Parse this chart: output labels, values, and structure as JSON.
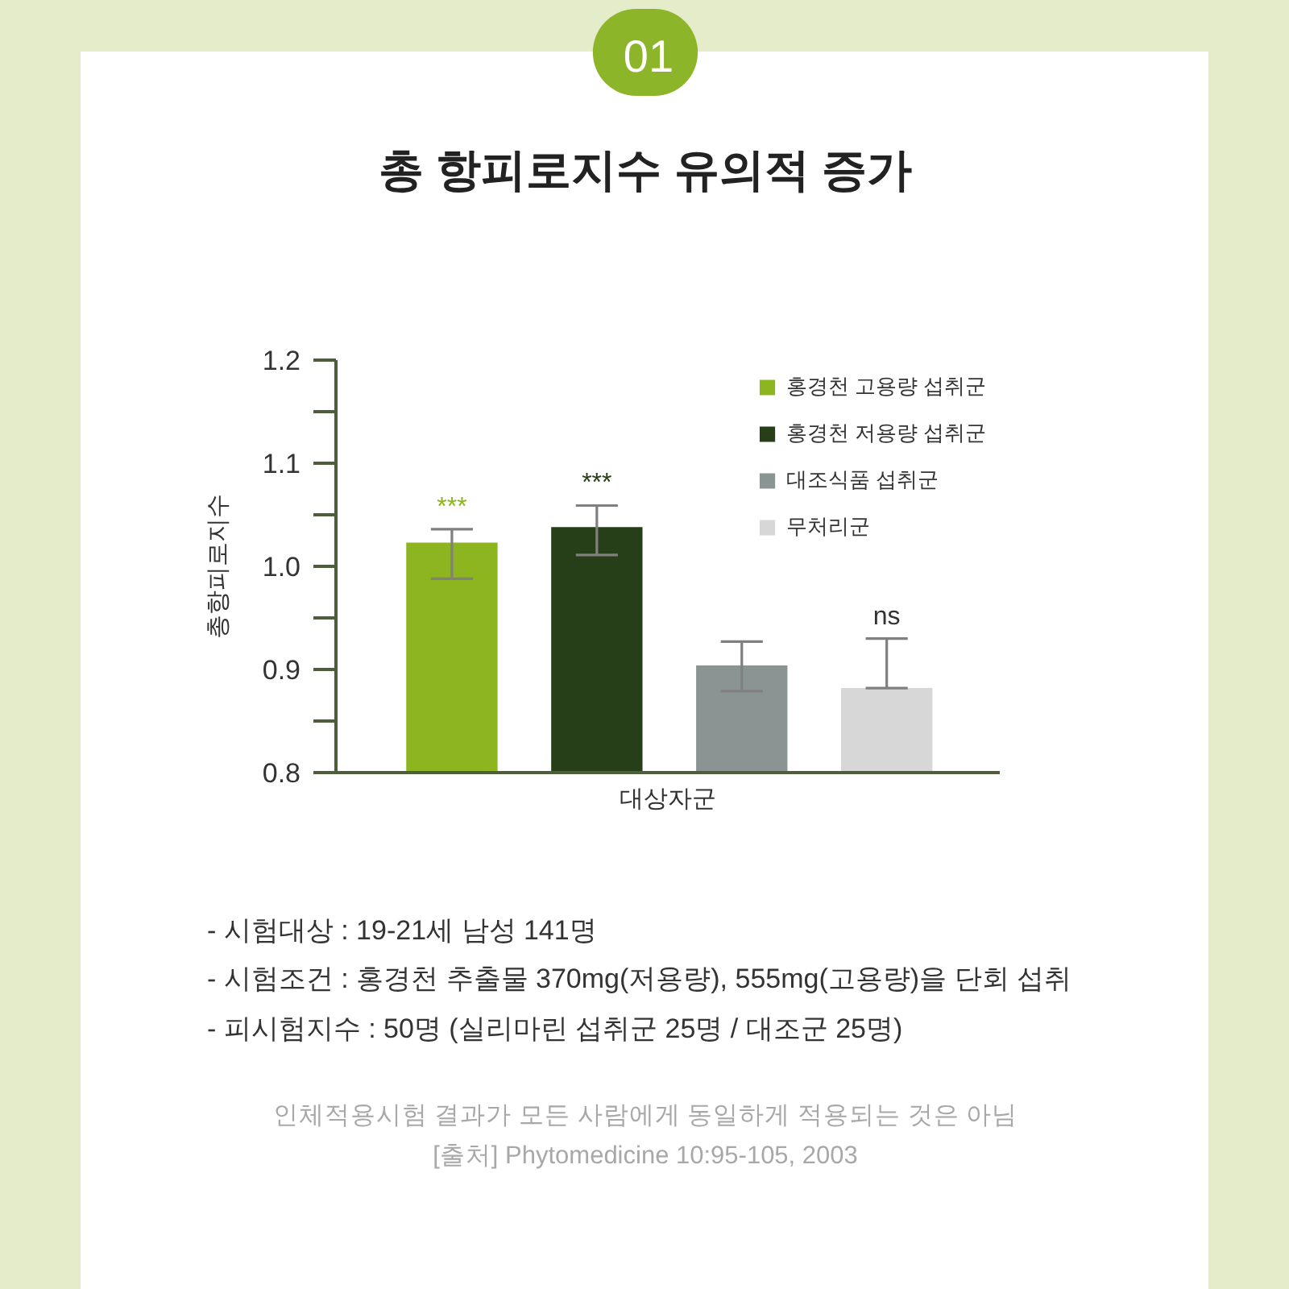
{
  "chart_data": {
    "type": "bar",
    "title": "총 항피로지수 유의적 증가",
    "xlabel": "대상자군",
    "ylabel": "총항피로지수",
    "categories": [
      null,
      null,
      null,
      null
    ],
    "series": [
      {
        "name": "홍경천 고용량 섭취군",
        "color": "#8db51f",
        "values": [
          1.023,
          null,
          null,
          null
        ],
        "errors": [
          [
            0.988,
            1.036
          ],
          null,
          null,
          null
        ],
        "value_labels": [
          "***",
          null,
          null,
          null
        ]
      },
      {
        "name": "홍경천 저용량 섭취군",
        "color": "#263f18",
        "values": [
          null,
          1.038,
          null,
          null
        ],
        "errors": [
          null,
          [
            1.011,
            1.059
          ],
          null,
          null
        ],
        "value_labels": [
          null,
          "***",
          null,
          null
        ]
      },
      {
        "name": "대조식품 섭취군",
        "color": "#8a9492",
        "values": [
          null,
          null,
          0.904,
          null
        ],
        "errors": [
          null,
          null,
          [
            0.879,
            0.927
          ],
          null
        ]
      },
      {
        "name": "무처리군",
        "color": "#d7d7d7",
        "values": [
          null,
          null,
          null,
          0.882
        ],
        "errors": [
          null,
          null,
          null,
          [
            0.882,
            0.93
          ]
        ],
        "value_labels": [
          null,
          null,
          null,
          "ns"
        ]
      }
    ],
    "ylim": [
      0.8,
      1.2
    ],
    "yticks": [
      0.8,
      {
        "value": 0.85,
        "label": null
      },
      0.9,
      {
        "value": 0.95,
        "label": null
      },
      {
        "value": 1.0,
        "label": "1.0"
      },
      {
        "value": 1.05,
        "label": null
      },
      1.1,
      {
        "value": 1.15,
        "label": null
      },
      1.2
    ],
    "tick_labels": "y",
    "legend": "top right",
    "annotations": [
      "01",
      "- 시험대상 : 19-21세 남성 141명",
      "- 시험조건 : 홍경천 추출물 370mg(저용량), 555mg(고용량)을 단회 섭취",
      "- 피시험지수 : 50명 (실리마린 섭취군 25명 / 대조군 25명)",
      "인체적용시험 결과가 모든 사람에게 동일하게 적용되는 것은 아님",
      "[출처] Phytomedicine 10:95-105, 2003"
    ]
  }
}
